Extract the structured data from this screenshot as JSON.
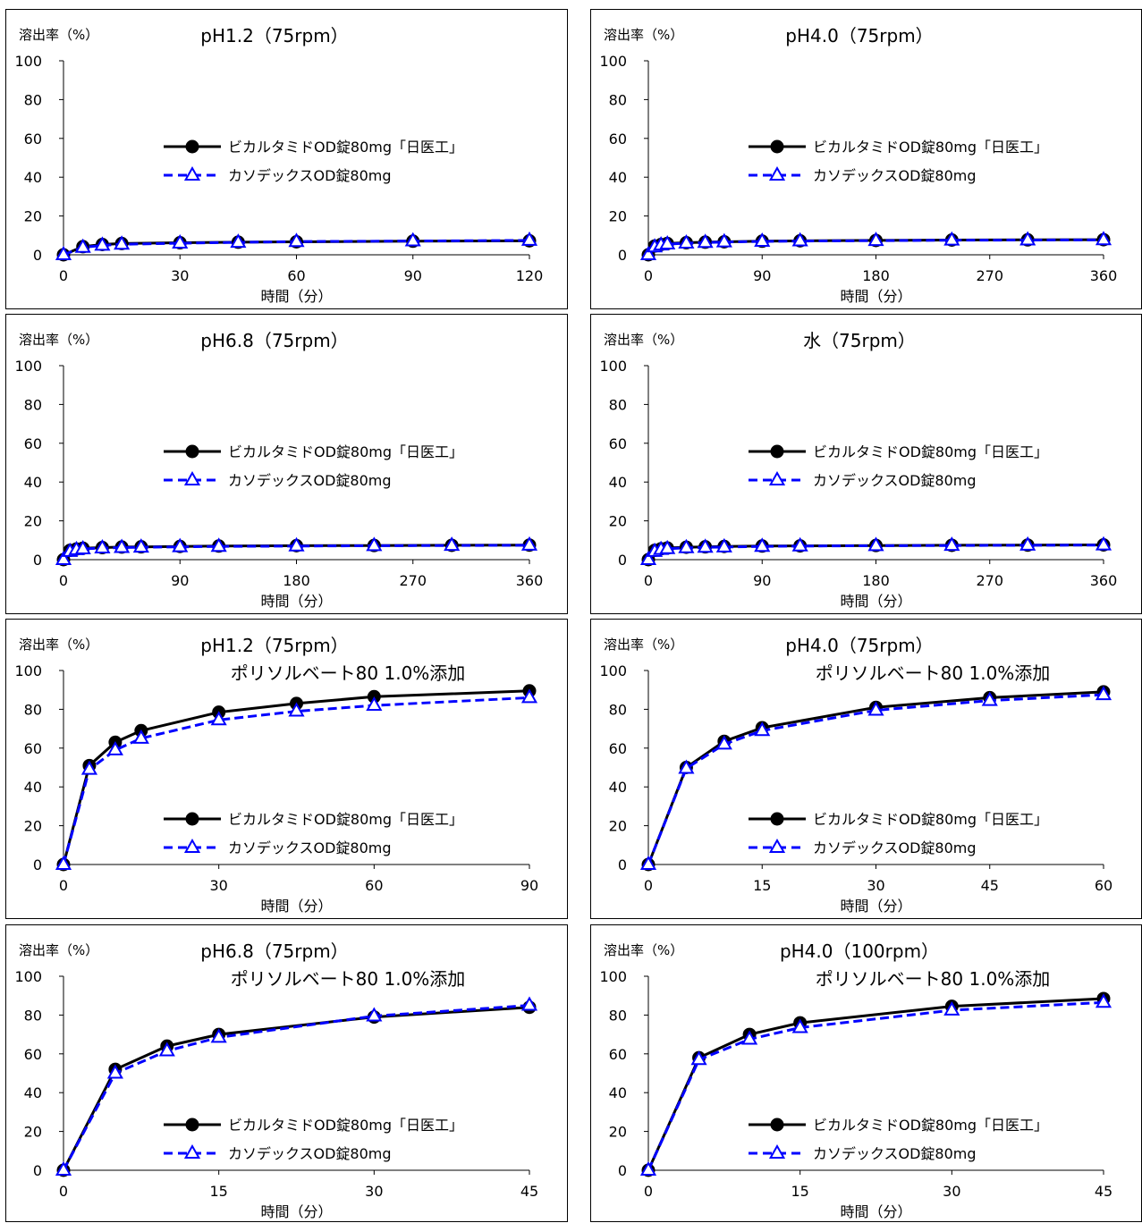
{
  "chart_data": [
    {
      "type": "line",
      "title": "pH1.2（75rpm）",
      "subtitle": "",
      "ylabel": "溶出率（%）",
      "xlabel": "時間（分）",
      "xlim": [
        0,
        120
      ],
      "xticks": [
        0,
        30,
        60,
        90,
        120
      ],
      "ylim": [
        0,
        100
      ],
      "yticks": [
        0,
        20,
        40,
        60,
        80,
        100
      ],
      "legend_position": "center-right",
      "series": [
        {
          "name": "ビカルタミドOD錠80mg「日医工」",
          "color": "#000000",
          "marker": "circle",
          "line": "solid",
          "x": [
            0,
            5,
            10,
            15,
            30,
            45,
            60,
            90,
            120
          ],
          "values": [
            0,
            4.2,
            5.3,
            5.8,
            6.2,
            6.5,
            6.7,
            7.0,
            7.2
          ]
        },
        {
          "name": "カソデックスOD錠80mg",
          "color": "#0000ff",
          "marker": "triangle",
          "line": "dashed",
          "x": [
            0,
            5,
            10,
            15,
            30,
            45,
            60,
            90,
            120
          ],
          "values": [
            0,
            3.8,
            4.9,
            5.4,
            6.0,
            6.4,
            6.8,
            7.1,
            7.4
          ]
        }
      ]
    },
    {
      "type": "line",
      "title": "pH4.0（75rpm）",
      "subtitle": "",
      "ylabel": "溶出率（%）",
      "xlabel": "時間（分）",
      "xlim": [
        0,
        360
      ],
      "xticks": [
        0,
        90,
        180,
        270,
        360
      ],
      "ylim": [
        0,
        100
      ],
      "yticks": [
        0,
        20,
        40,
        60,
        80,
        100
      ],
      "legend_position": "center-right",
      "series": [
        {
          "name": "ビカルタミドOD錠80mg「日医工」",
          "color": "#000000",
          "marker": "circle",
          "line": "solid",
          "x": [
            0,
            5,
            10,
            15,
            30,
            45,
            60,
            90,
            120,
            180,
            240,
            300,
            360
          ],
          "values": [
            0,
            4.5,
            5.3,
            5.8,
            6.2,
            6.5,
            6.7,
            7.0,
            7.2,
            7.4,
            7.6,
            7.7,
            7.8
          ]
        },
        {
          "name": "カソデックスOD錠80mg",
          "color": "#0000ff",
          "marker": "triangle",
          "line": "dashed",
          "x": [
            0,
            5,
            10,
            15,
            30,
            45,
            60,
            90,
            120,
            180,
            240,
            300,
            360
          ],
          "values": [
            0,
            4.0,
            5.0,
            5.5,
            6.0,
            6.3,
            6.6,
            6.9,
            7.1,
            7.3,
            7.5,
            7.6,
            7.7
          ]
        }
      ]
    },
    {
      "type": "line",
      "title": "pH6.8（75rpm）",
      "subtitle": "",
      "ylabel": "溶出率（%）",
      "xlabel": "時間（分）",
      "xlim": [
        0,
        360
      ],
      "xticks": [
        0,
        90,
        180,
        270,
        360
      ],
      "ylim": [
        0,
        100
      ],
      "yticks": [
        0,
        20,
        40,
        60,
        80,
        100
      ],
      "legend_position": "center-right",
      "series": [
        {
          "name": "ビカルタミドOD錠80mg「日医工」",
          "color": "#000000",
          "marker": "circle",
          "line": "solid",
          "x": [
            0,
            5,
            10,
            15,
            30,
            45,
            60,
            90,
            120,
            180,
            240,
            300,
            360
          ],
          "values": [
            0,
            4.8,
            5.5,
            5.9,
            6.2,
            6.5,
            6.6,
            6.8,
            7.0,
            7.2,
            7.3,
            7.4,
            7.5
          ]
        },
        {
          "name": "カソデックスOD錠80mg",
          "color": "#0000ff",
          "marker": "triangle",
          "line": "dashed",
          "x": [
            0,
            5,
            10,
            15,
            30,
            45,
            60,
            90,
            120,
            180,
            240,
            300,
            360
          ],
          "values": [
            0,
            4.2,
            5.1,
            5.5,
            6.0,
            6.2,
            6.4,
            6.6,
            6.8,
            7.0,
            7.2,
            7.3,
            7.4
          ]
        }
      ]
    },
    {
      "type": "line",
      "title": "水（75rpm）",
      "subtitle": "",
      "ylabel": "溶出率（%）",
      "xlabel": "時間（分）",
      "xlim": [
        0,
        360
      ],
      "xticks": [
        0,
        90,
        180,
        270,
        360
      ],
      "ylim": [
        0,
        100
      ],
      "yticks": [
        0,
        20,
        40,
        60,
        80,
        100
      ],
      "legend_position": "center-right",
      "series": [
        {
          "name": "ビカルタミドOD錠80mg「日医工」",
          "color": "#000000",
          "marker": "circle",
          "line": "solid",
          "x": [
            0,
            5,
            10,
            15,
            30,
            45,
            60,
            90,
            120,
            180,
            240,
            300,
            360
          ],
          "values": [
            0,
            4.8,
            5.6,
            6.0,
            6.4,
            6.6,
            6.8,
            7.0,
            7.1,
            7.3,
            7.4,
            7.5,
            7.6
          ]
        },
        {
          "name": "カソデックスOD錠80mg",
          "color": "#0000ff",
          "marker": "triangle",
          "line": "dashed",
          "x": [
            0,
            5,
            10,
            15,
            30,
            45,
            60,
            90,
            120,
            180,
            240,
            300,
            360
          ],
          "values": [
            0,
            4.2,
            5.2,
            5.6,
            6.1,
            6.3,
            6.5,
            6.8,
            7.0,
            7.2,
            7.3,
            7.4,
            7.5
          ]
        }
      ]
    },
    {
      "type": "line",
      "title": "pH1.2（75rpm）",
      "subtitle": "ポリソルベート80 1.0%添加",
      "ylabel": "溶出率（%）",
      "xlabel": "時間（分）",
      "xlim": [
        0,
        90
      ],
      "xticks": [
        0,
        30,
        60,
        90
      ],
      "ylim": [
        0,
        100
      ],
      "yticks": [
        0,
        20,
        40,
        60,
        80,
        100
      ],
      "legend_position": "bottom-right",
      "series": [
        {
          "name": "ビカルタミドOD錠80mg「日医工」",
          "color": "#000000",
          "marker": "circle",
          "line": "solid",
          "x": [
            0,
            5,
            10,
            15,
            30,
            45,
            60,
            90
          ],
          "values": [
            0,
            51,
            63,
            69,
            78.5,
            83,
            86.5,
            89.5
          ]
        },
        {
          "name": "カソデックスOD錠80mg",
          "color": "#0000ff",
          "marker": "triangle",
          "line": "dashed",
          "x": [
            0,
            5,
            10,
            15,
            30,
            45,
            60,
            90
          ],
          "values": [
            0,
            49,
            59,
            65,
            74.5,
            79,
            82,
            86
          ]
        }
      ]
    },
    {
      "type": "line",
      "title": "pH4.0（75rpm）",
      "subtitle": "ポリソルベート80 1.0%添加",
      "ylabel": "溶出率（%）",
      "xlabel": "時間（分）",
      "xlim": [
        0,
        60
      ],
      "xticks": [
        0,
        15,
        30,
        45,
        60
      ],
      "ylim": [
        0,
        100
      ],
      "yticks": [
        0,
        20,
        40,
        60,
        80,
        100
      ],
      "legend_position": "bottom-right",
      "series": [
        {
          "name": "ビカルタミドOD錠80mg「日医工」",
          "color": "#000000",
          "marker": "circle",
          "line": "solid",
          "x": [
            0,
            5,
            10,
            15,
            30,
            45,
            60
          ],
          "values": [
            0,
            50,
            63.5,
            70.5,
            81,
            86,
            89
          ]
        },
        {
          "name": "カソデックスOD錠80mg",
          "color": "#0000ff",
          "marker": "triangle",
          "line": "dashed",
          "x": [
            0,
            5,
            10,
            15,
            30,
            45,
            60
          ],
          "values": [
            0,
            49.5,
            62,
            69,
            79.5,
            84.5,
            87.5
          ]
        }
      ]
    },
    {
      "type": "line",
      "title": "pH6.8（75rpm）",
      "subtitle": "ポリソルベート80 1.0%添加",
      "ylabel": "溶出率（%）",
      "xlabel": "時間（分）",
      "xlim": [
        0,
        45
      ],
      "xticks": [
        0,
        15,
        30,
        45
      ],
      "ylim": [
        0,
        100
      ],
      "yticks": [
        0,
        20,
        40,
        60,
        80,
        100
      ],
      "legend_position": "bottom-right",
      "series": [
        {
          "name": "ビカルタミドOD錠80mg「日医工」",
          "color": "#000000",
          "marker": "circle",
          "line": "solid",
          "x": [
            0,
            5,
            10,
            15,
            30,
            45
          ],
          "values": [
            0,
            52,
            64,
            70,
            79,
            84
          ]
        },
        {
          "name": "カソデックスOD錠80mg",
          "color": "#0000ff",
          "marker": "triangle",
          "line": "dashed",
          "x": [
            0,
            5,
            10,
            15,
            30,
            45
          ],
          "values": [
            0,
            50,
            61.5,
            68.5,
            79.5,
            85
          ]
        }
      ]
    },
    {
      "type": "line",
      "title": "pH4.0（100rpm）",
      "subtitle": "ポリソルベート80 1.0%添加",
      "ylabel": "溶出率（%）",
      "xlabel": "時間（分）",
      "xlim": [
        0,
        45
      ],
      "xticks": [
        0,
        15,
        30,
        45
      ],
      "ylim": [
        0,
        100
      ],
      "yticks": [
        0,
        20,
        40,
        60,
        80,
        100
      ],
      "legend_position": "bottom-right",
      "series": [
        {
          "name": "ビカルタミドOD錠80mg「日医工」",
          "color": "#000000",
          "marker": "circle",
          "line": "solid",
          "x": [
            0,
            5,
            10,
            15,
            30,
            45
          ],
          "values": [
            0,
            58,
            70,
            76,
            84.5,
            88.5
          ]
        },
        {
          "name": "カソデックスOD錠80mg",
          "color": "#0000ff",
          "marker": "triangle",
          "line": "dashed",
          "x": [
            0,
            5,
            10,
            15,
            30,
            45
          ],
          "values": [
            0,
            57,
            67.5,
            73.5,
            82.5,
            86.5
          ]
        }
      ]
    }
  ]
}
